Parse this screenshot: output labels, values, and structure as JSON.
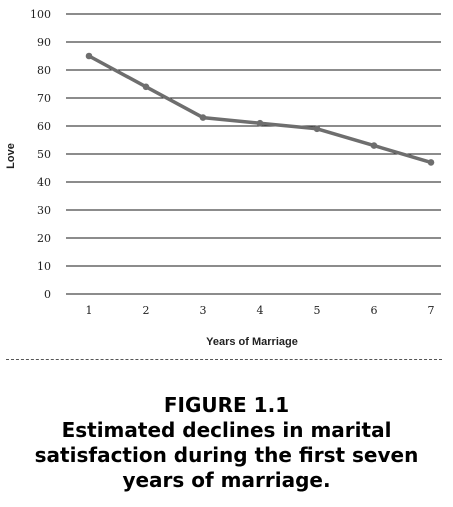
{
  "chart_data": {
    "type": "line",
    "title": "",
    "xlabel": "Years of Marriage",
    "ylabel": "Love",
    "x": [
      1,
      2,
      3,
      4,
      5,
      6,
      7
    ],
    "series": [
      {
        "values": [
          85,
          74,
          63,
          61,
          59,
          53,
          47
        ]
      }
    ],
    "ylim": [
      0,
      100
    ],
    "yticks": [
      0,
      10,
      20,
      30,
      40,
      50,
      60,
      70,
      80,
      90,
      100
    ],
    "grid": "horizontal",
    "legend": "none",
    "line_color": "#6e6e6e",
    "grid_color": "#1a1a1a"
  },
  "caption": {
    "label": "FIGURE 1.1",
    "text": "Estimated declines in marital satisfaction during the first seven years of marriage."
  }
}
